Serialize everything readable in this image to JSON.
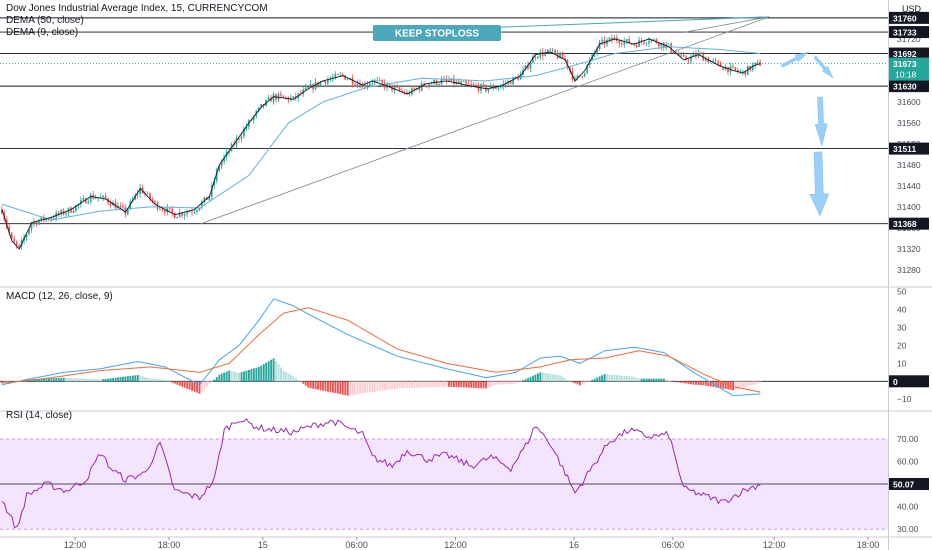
{
  "chart_title": "Dow Jones Industrial Average Index, 15, CURRENCYCOM",
  "main_indicators": [
    "DEMA (50, close)",
    "DEMA (9, close)"
  ],
  "macd_title": "MACD (12, 26, close, 9)",
  "rsi_title": "RSI (14, close)",
  "currency": "USD",
  "annotation": "KEEP STOPLOSS",
  "countdown": "10:18",
  "colors": {
    "up": "#26a69a",
    "down": "#ef5350",
    "dema50": "#5fb3d9",
    "dema9": "#131722",
    "macd_line": "#42a5f5",
    "signal_line": "#ef6c3a",
    "rsi_line": "#9c27b0",
    "rsi_band": "#f3e5ff",
    "annotation_bg": "#4aa8b8",
    "arrow": "#90caf9"
  },
  "chart_data": [
    {
      "type": "candlestick",
      "y_ticks": [
        31280,
        31320,
        31360,
        31400,
        31440,
        31480,
        31520,
        31560,
        31600,
        31640,
        31680,
        31720,
        31760
      ],
      "ylim": [
        31255,
        31775
      ],
      "x_ticks": [
        {
          "label": "12:00",
          "bar": 30
        },
        {
          "label": "18:00",
          "bar": 68
        },
        {
          "label": "15",
          "bar": 106
        },
        {
          "label": "06:00",
          "bar": 144
        },
        {
          "label": "12:00",
          "bar": 184
        },
        {
          "label": "16",
          "bar": 232
        },
        {
          "label": "06:00",
          "bar": 272
        },
        {
          "label": "12:00",
          "bar": 313
        },
        {
          "label": "18:00",
          "bar": 351
        }
      ],
      "horizontal_levels": [
        31760,
        31733,
        31692,
        31630,
        31511,
        31368
      ],
      "last_price": 31673,
      "keypoints": [
        [
          0,
          31395
        ],
        [
          4,
          31335
        ],
        [
          7,
          31320
        ],
        [
          12,
          31370
        ],
        [
          20,
          31380
        ],
        [
          28,
          31395
        ],
        [
          36,
          31420
        ],
        [
          42,
          31415
        ],
        [
          50,
          31390
        ],
        [
          56,
          31435
        ],
        [
          62,
          31405
        ],
        [
          70,
          31385
        ],
        [
          78,
          31395
        ],
        [
          84,
          31420
        ],
        [
          88,
          31480
        ],
        [
          94,
          31520
        ],
        [
          100,
          31560
        ],
        [
          105,
          31590
        ],
        [
          110,
          31610
        ],
        [
          118,
          31605
        ],
        [
          124,
          31625
        ],
        [
          130,
          31640
        ],
        [
          138,
          31650
        ],
        [
          146,
          31632
        ],
        [
          150,
          31640
        ],
        [
          156,
          31630
        ],
        [
          164,
          31615
        ],
        [
          172,
          31635
        ],
        [
          180,
          31640
        ],
        [
          188,
          31632
        ],
        [
          196,
          31625
        ],
        [
          202,
          31630
        ],
        [
          210,
          31650
        ],
        [
          216,
          31690
        ],
        [
          222,
          31695
        ],
        [
          228,
          31680
        ],
        [
          232,
          31640
        ],
        [
          236,
          31660
        ],
        [
          242,
          31710
        ],
        [
          248,
          31720
        ],
        [
          256,
          31710
        ],
        [
          262,
          31720
        ],
        [
          270,
          31705
        ],
        [
          276,
          31680
        ],
        [
          282,
          31690
        ],
        [
          290,
          31670
        ],
        [
          296,
          31660
        ],
        [
          300,
          31655
        ],
        [
          304,
          31668
        ],
        [
          307,
          31673
        ]
      ],
      "dema50_keypoints": [
        [
          0,
          31405
        ],
        [
          20,
          31375
        ],
        [
          40,
          31392
        ],
        [
          60,
          31400
        ],
        [
          80,
          31398
        ],
        [
          100,
          31460
        ],
        [
          116,
          31560
        ],
        [
          130,
          31600
        ],
        [
          148,
          31628
        ],
        [
          170,
          31645
        ],
        [
          196,
          31640
        ],
        [
          216,
          31650
        ],
        [
          232,
          31670
        ],
        [
          248,
          31692
        ],
        [
          270,
          31705
        ],
        [
          290,
          31700
        ],
        [
          307,
          31692
        ]
      ],
      "trendline": {
        "from": [
          81,
          31368
        ],
        "to": [
          311,
          31762
        ]
      }
    },
    {
      "type": "macd",
      "y_ticks": [
        -10,
        0,
        10,
        20,
        30,
        40,
        50
      ],
      "ylim": [
        -16,
        52
      ],
      "macd_keypoints": [
        [
          0,
          -2
        ],
        [
          10,
          1
        ],
        [
          25,
          5
        ],
        [
          40,
          7
        ],
        [
          55,
          11
        ],
        [
          66,
          8
        ],
        [
          80,
          -2
        ],
        [
          88,
          12
        ],
        [
          96,
          20
        ],
        [
          104,
          34
        ],
        [
          110,
          46
        ],
        [
          118,
          42
        ],
        [
          126,
          36
        ],
        [
          140,
          26
        ],
        [
          160,
          14
        ],
        [
          180,
          7
        ],
        [
          196,
          2
        ],
        [
          208,
          5
        ],
        [
          218,
          13
        ],
        [
          226,
          14
        ],
        [
          234,
          10
        ],
        [
          244,
          17
        ],
        [
          256,
          19
        ],
        [
          268,
          16
        ],
        [
          280,
          5
        ],
        [
          296,
          -8
        ],
        [
          307,
          -7
        ]
      ],
      "signal_keypoints": [
        [
          0,
          -1
        ],
        [
          20,
          2
        ],
        [
          40,
          6
        ],
        [
          60,
          8
        ],
        [
          80,
          5
        ],
        [
          92,
          10
        ],
        [
          104,
          26
        ],
        [
          114,
          38
        ],
        [
          124,
          41
        ],
        [
          140,
          34
        ],
        [
          160,
          18
        ],
        [
          180,
          10
        ],
        [
          200,
          5
        ],
        [
          218,
          8
        ],
        [
          230,
          12
        ],
        [
          244,
          13
        ],
        [
          258,
          17
        ],
        [
          270,
          14
        ],
        [
          284,
          4
        ],
        [
          296,
          -3
        ],
        [
          307,
          -6
        ]
      ]
    },
    {
      "type": "rsi",
      "y_ticks": [
        30,
        40,
        50,
        60,
        70
      ],
      "ylim": [
        27,
        82
      ],
      "band": [
        30,
        70
      ],
      "last_value": 50.07,
      "keypoints": [
        [
          0,
          43
        ],
        [
          6,
          30
        ],
        [
          10,
          45
        ],
        [
          18,
          50
        ],
        [
          26,
          47
        ],
        [
          34,
          52
        ],
        [
          40,
          64
        ],
        [
          44,
          57
        ],
        [
          50,
          52
        ],
        [
          58,
          55
        ],
        [
          64,
          68
        ],
        [
          70,
          47
        ],
        [
          80,
          44
        ],
        [
          86,
          52
        ],
        [
          90,
          74
        ],
        [
          96,
          79
        ],
        [
          104,
          75
        ],
        [
          110,
          74
        ],
        [
          118,
          73
        ],
        [
          126,
          76
        ],
        [
          134,
          78
        ],
        [
          140,
          75
        ],
        [
          146,
          72
        ],
        [
          150,
          62
        ],
        [
          158,
          58
        ],
        [
          164,
          65
        ],
        [
          172,
          61
        ],
        [
          180,
          63
        ],
        [
          190,
          58
        ],
        [
          198,
          62
        ],
        [
          206,
          57
        ],
        [
          212,
          67
        ],
        [
          216,
          76
        ],
        [
          222,
          68
        ],
        [
          228,
          55
        ],
        [
          232,
          46
        ],
        [
          238,
          56
        ],
        [
          246,
          69
        ],
        [
          254,
          74
        ],
        [
          262,
          71
        ],
        [
          270,
          72
        ],
        [
          276,
          48
        ],
        [
          284,
          45
        ],
        [
          292,
          42
        ],
        [
          300,
          47
        ],
        [
          307,
          50
        ]
      ]
    }
  ],
  "price_labels": {
    "31760": "31760",
    "31733": "31733",
    "31692": "31692",
    "31630": "31630",
    "31511": "31511",
    "31368": "31368",
    "last": "31673",
    "macd_zero": "0",
    "rsi_last": "50.07"
  }
}
